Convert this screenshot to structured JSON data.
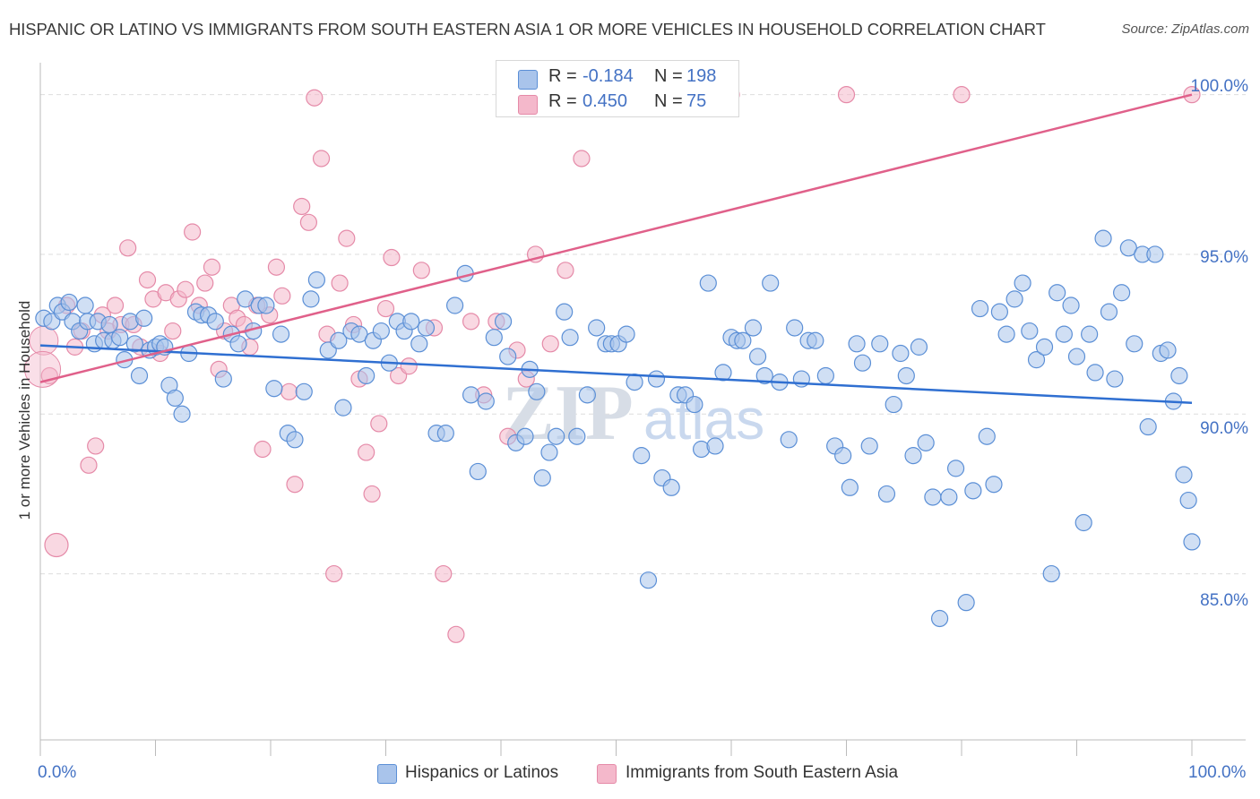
{
  "title": "HISPANIC OR LATINO VS IMMIGRANTS FROM SOUTH EASTERN ASIA 1 OR MORE VEHICLES IN HOUSEHOLD CORRELATION CHART",
  "source": "Source: ZipAtlas.com",
  "legend": {
    "rows": [
      {
        "r_label": "R =",
        "r_value": "-0.184",
        "n_label": "N =",
        "n_value": "198"
      },
      {
        "r_label": "R =",
        "r_value": "0.450",
        "n_label": "N =",
        "n_value": "75"
      }
    ]
  },
  "bottom_legend": {
    "series1": "Hispanics or Latinos",
    "series2": "Immigrants from South Eastern Asia"
  },
  "axes": {
    "ylabel": "1 or more Vehicles in Household",
    "x_min_label": "0.0%",
    "x_max_label": "100.0%",
    "y_ticks": [
      "100.0%",
      "95.0%",
      "90.0%",
      "85.0%"
    ]
  },
  "colors": {
    "blue_fill": "#a9c4eb",
    "blue_stroke": "#5b8fd6",
    "blue_line": "#2f6fd1",
    "pink_fill": "#f4b8cb",
    "pink_stroke": "#e58aa8",
    "pink_line": "#e0608a",
    "grid": "#dddddd"
  },
  "chart_data": {
    "type": "scatter",
    "xlim": [
      0,
      100
    ],
    "ylim": [
      79.8,
      101.0
    ],
    "x_unit": "percent",
    "y_unit": "percent",
    "grid": true,
    "legend_placement": "top-center",
    "series": [
      {
        "name": "Hispanics or Latinos",
        "color": "#a9c4eb",
        "trend": {
          "x": [
            0,
            100
          ],
          "y": [
            92.15,
            90.35
          ]
        },
        "points": [
          [
            0.3,
            93.0
          ],
          [
            1.0,
            92.9
          ],
          [
            1.5,
            93.4
          ],
          [
            1.9,
            93.2
          ],
          [
            2.5,
            93.5
          ],
          [
            2.8,
            92.9
          ],
          [
            3.4,
            92.6
          ],
          [
            3.9,
            93.4
          ],
          [
            4.1,
            92.9
          ],
          [
            4.7,
            92.2
          ],
          [
            5.0,
            92.9
          ],
          [
            5.5,
            92.3
          ],
          [
            6.0,
            92.8
          ],
          [
            6.3,
            92.3
          ],
          [
            6.9,
            92.4
          ],
          [
            7.3,
            91.7
          ],
          [
            7.8,
            92.9
          ],
          [
            8.2,
            92.2
          ],
          [
            8.6,
            91.2
          ],
          [
            9.0,
            93.0
          ],
          [
            9.5,
            92.0
          ],
          [
            10.0,
            92.1
          ],
          [
            10.4,
            92.2
          ],
          [
            10.8,
            92.1
          ],
          [
            11.2,
            90.9
          ],
          [
            11.7,
            90.5
          ],
          [
            12.3,
            90.0
          ],
          [
            12.9,
            91.9
          ],
          [
            13.5,
            93.2
          ],
          [
            14.0,
            93.1
          ],
          [
            14.6,
            93.1
          ],
          [
            15.2,
            92.9
          ],
          [
            15.9,
            91.1
          ],
          [
            16.6,
            92.5
          ],
          [
            17.2,
            92.2
          ],
          [
            17.8,
            93.6
          ],
          [
            18.5,
            92.6
          ],
          [
            19.0,
            93.4
          ],
          [
            19.6,
            93.4
          ],
          [
            20.3,
            90.8
          ],
          [
            20.9,
            92.5
          ],
          [
            21.5,
            89.4
          ],
          [
            22.1,
            89.2
          ],
          [
            22.9,
            90.7
          ],
          [
            23.5,
            93.6
          ],
          [
            24.0,
            94.2
          ],
          [
            25.0,
            92.0
          ],
          [
            25.9,
            92.3
          ],
          [
            26.3,
            90.2
          ],
          [
            27.0,
            92.6
          ],
          [
            27.7,
            92.5
          ],
          [
            28.3,
            91.2
          ],
          [
            28.9,
            92.3
          ],
          [
            29.6,
            92.6
          ],
          [
            30.3,
            91.6
          ],
          [
            31.0,
            92.9
          ],
          [
            31.6,
            92.6
          ],
          [
            32.2,
            92.9
          ],
          [
            32.9,
            92.2
          ],
          [
            33.5,
            92.7
          ],
          [
            34.4,
            89.4
          ],
          [
            35.2,
            89.4
          ],
          [
            36.0,
            93.4
          ],
          [
            36.9,
            94.4
          ],
          [
            37.4,
            90.6
          ],
          [
            38.0,
            88.2
          ],
          [
            38.7,
            90.4
          ],
          [
            39.4,
            92.4
          ],
          [
            40.2,
            92.9
          ],
          [
            40.6,
            91.8
          ],
          [
            41.3,
            89.1
          ],
          [
            42.1,
            89.3
          ],
          [
            42.5,
            91.4
          ],
          [
            43.1,
            90.7
          ],
          [
            43.6,
            88.0
          ],
          [
            44.2,
            88.8
          ],
          [
            44.8,
            89.3
          ],
          [
            45.5,
            93.2
          ],
          [
            46.0,
            92.4
          ],
          [
            46.6,
            89.3
          ],
          [
            47.5,
            90.6
          ],
          [
            48.3,
            92.7
          ],
          [
            49.1,
            92.2
          ],
          [
            49.6,
            92.2
          ],
          [
            50.2,
            92.2
          ],
          [
            50.9,
            92.5
          ],
          [
            51.6,
            91.0
          ],
          [
            52.2,
            88.7
          ],
          [
            52.8,
            84.8
          ],
          [
            53.5,
            91.1
          ],
          [
            54.0,
            88.0
          ],
          [
            54.8,
            87.7
          ],
          [
            55.4,
            90.6
          ],
          [
            56.0,
            90.6
          ],
          [
            56.8,
            90.3
          ],
          [
            57.4,
            88.9
          ],
          [
            58.0,
            94.1
          ],
          [
            58.6,
            89.0
          ],
          [
            59.3,
            91.3
          ],
          [
            60.0,
            92.4
          ],
          [
            60.5,
            92.3
          ],
          [
            61.0,
            92.3
          ],
          [
            61.9,
            92.7
          ],
          [
            62.3,
            91.8
          ],
          [
            62.9,
            91.2
          ],
          [
            63.4,
            94.1
          ],
          [
            64.2,
            91.0
          ],
          [
            65.0,
            89.2
          ],
          [
            65.5,
            92.7
          ],
          [
            66.1,
            91.1
          ],
          [
            66.7,
            92.3
          ],
          [
            67.3,
            92.3
          ],
          [
            68.2,
            91.2
          ],
          [
            69.0,
            89.0
          ],
          [
            69.7,
            88.7
          ],
          [
            70.3,
            87.7
          ],
          [
            70.9,
            92.2
          ],
          [
            71.4,
            91.6
          ],
          [
            72.0,
            89.0
          ],
          [
            72.9,
            92.2
          ],
          [
            73.5,
            87.5
          ],
          [
            74.1,
            90.3
          ],
          [
            74.7,
            91.9
          ],
          [
            75.2,
            91.2
          ],
          [
            75.8,
            88.7
          ],
          [
            76.3,
            92.1
          ],
          [
            76.9,
            89.1
          ],
          [
            77.5,
            87.4
          ],
          [
            78.1,
            83.6
          ],
          [
            78.9,
            87.4
          ],
          [
            79.5,
            88.3
          ],
          [
            80.4,
            84.1
          ],
          [
            81.0,
            87.6
          ],
          [
            81.6,
            93.3
          ],
          [
            82.2,
            89.3
          ],
          [
            82.8,
            87.8
          ],
          [
            83.3,
            93.2
          ],
          [
            83.9,
            92.5
          ],
          [
            84.6,
            93.6
          ],
          [
            85.3,
            94.1
          ],
          [
            85.9,
            92.6
          ],
          [
            86.5,
            91.7
          ],
          [
            87.2,
            92.1
          ],
          [
            87.8,
            85.0
          ],
          [
            88.3,
            93.8
          ],
          [
            88.9,
            92.5
          ],
          [
            89.5,
            93.4
          ],
          [
            90.0,
            91.8
          ],
          [
            90.6,
            86.6
          ],
          [
            91.1,
            92.5
          ],
          [
            91.6,
            91.3
          ],
          [
            92.3,
            95.5
          ],
          [
            92.8,
            93.2
          ],
          [
            93.3,
            91.1
          ],
          [
            93.9,
            93.8
          ],
          [
            94.5,
            95.2
          ],
          [
            95.0,
            92.2
          ],
          [
            95.7,
            95.0
          ],
          [
            96.2,
            89.6
          ],
          [
            96.8,
            95.0
          ],
          [
            97.3,
            91.9
          ],
          [
            97.9,
            92.0
          ],
          [
            98.4,
            90.4
          ],
          [
            98.9,
            91.2
          ],
          [
            99.3,
            88.1
          ],
          [
            99.7,
            87.3
          ],
          [
            100.0,
            86.0
          ]
        ]
      },
      {
        "name": "Immigrants from South Eastern Asia",
        "color": "#f4b8cb",
        "trend": {
          "x": [
            0,
            100
          ],
          "y": [
            91.0,
            100.0
          ]
        },
        "points": [
          [
            0.8,
            91.2
          ],
          [
            1.4,
            85.9
          ],
          [
            2.3,
            93.4
          ],
          [
            3.0,
            92.1
          ],
          [
            3.6,
            92.6
          ],
          [
            4.2,
            88.4
          ],
          [
            4.8,
            89.0
          ],
          [
            5.4,
            93.1
          ],
          [
            5.9,
            92.6
          ],
          [
            6.5,
            93.4
          ],
          [
            7.0,
            92.8
          ],
          [
            7.6,
            95.2
          ],
          [
            8.1,
            92.8
          ],
          [
            8.7,
            92.1
          ],
          [
            9.3,
            94.2
          ],
          [
            9.8,
            93.6
          ],
          [
            10.4,
            91.9
          ],
          [
            10.9,
            93.8
          ],
          [
            11.5,
            92.6
          ],
          [
            12.0,
            93.6
          ],
          [
            12.6,
            93.9
          ],
          [
            13.2,
            95.7
          ],
          [
            13.8,
            93.4
          ],
          [
            14.3,
            94.1
          ],
          [
            14.9,
            94.6
          ],
          [
            15.5,
            91.4
          ],
          [
            16.0,
            92.6
          ],
          [
            16.6,
            93.4
          ],
          [
            17.1,
            93.0
          ],
          [
            17.7,
            92.8
          ],
          [
            18.2,
            92.1
          ],
          [
            18.8,
            93.4
          ],
          [
            19.3,
            88.9
          ],
          [
            19.9,
            93.1
          ],
          [
            20.5,
            94.6
          ],
          [
            21.0,
            93.7
          ],
          [
            21.6,
            90.7
          ],
          [
            22.1,
            87.8
          ],
          [
            22.7,
            96.5
          ],
          [
            23.3,
            96.0
          ],
          [
            23.8,
            99.9
          ],
          [
            24.4,
            98.0
          ],
          [
            24.9,
            92.5
          ],
          [
            25.5,
            85.0
          ],
          [
            26.0,
            94.1
          ],
          [
            26.6,
            95.5
          ],
          [
            27.2,
            92.8
          ],
          [
            27.7,
            91.1
          ],
          [
            28.3,
            88.8
          ],
          [
            28.8,
            87.5
          ],
          [
            29.4,
            89.7
          ],
          [
            30.0,
            93.3
          ],
          [
            30.5,
            94.9
          ],
          [
            31.1,
            91.2
          ],
          [
            32.0,
            91.5
          ],
          [
            33.1,
            94.5
          ],
          [
            34.2,
            92.7
          ],
          [
            35.0,
            85.0
          ],
          [
            36.1,
            83.1
          ],
          [
            37.4,
            92.9
          ],
          [
            38.5,
            90.6
          ],
          [
            39.6,
            92.9
          ],
          [
            40.6,
            89.3
          ],
          [
            41.4,
            92.0
          ],
          [
            42.2,
            91.1
          ],
          [
            43.0,
            95.0
          ],
          [
            44.3,
            92.2
          ],
          [
            45.6,
            94.5
          ],
          [
            47.0,
            98.0
          ],
          [
            48.2,
            100.0
          ],
          [
            50.0,
            100.0
          ],
          [
            60.0,
            100.0
          ],
          [
            70.0,
            100.0
          ],
          [
            80.0,
            100.0
          ],
          [
            100.0,
            100.0
          ]
        ]
      }
    ]
  }
}
